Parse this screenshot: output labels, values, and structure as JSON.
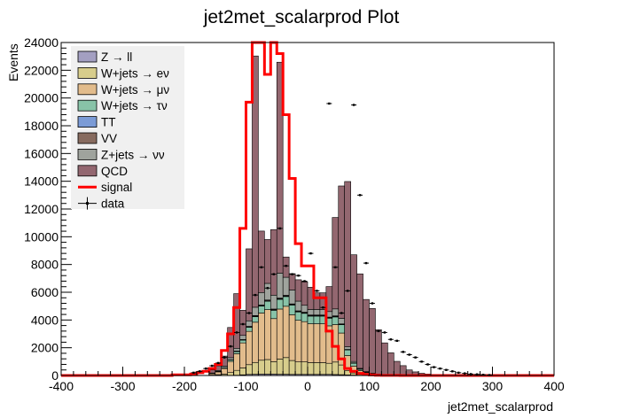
{
  "chart_data": {
    "type": "bar",
    "title": "jet2met_scalarprod Plot",
    "xlabel": "jet2met_scalarprod",
    "ylabel": "Events",
    "xlim": [
      -400,
      400
    ],
    "ylim": [
      0,
      24000
    ],
    "x_ticks": [
      -400,
      -300,
      -200,
      -100,
      0,
      100,
      200,
      300,
      400
    ],
    "y_ticks": [
      0,
      2000,
      4000,
      6000,
      8000,
      10000,
      12000,
      14000,
      16000,
      18000,
      20000,
      22000,
      24000
    ],
    "stacked": true,
    "grid": false,
    "legend_position": "top-left",
    "bin_edges": [
      -160,
      -150,
      -140,
      -130,
      -120,
      -110,
      -100,
      -90,
      -80,
      -70,
      -60,
      -50,
      -40,
      -30,
      -20,
      -10,
      0,
      10,
      20,
      30,
      40,
      50,
      60,
      70,
      80,
      90,
      100,
      110,
      120,
      130,
      140,
      150,
      160,
      170,
      180,
      190,
      200,
      210,
      220,
      230,
      240,
      250,
      260
    ],
    "series": [
      {
        "name": "Z → ll",
        "color": "#a39fc1",
        "values": [
          0,
          0,
          0,
          10,
          20,
          50,
          80,
          90,
          100,
          100,
          100,
          90,
          90,
          80,
          80,
          80,
          80,
          80,
          80,
          80,
          70,
          60,
          40,
          30,
          20,
          10,
          10,
          10,
          5,
          5,
          5,
          0,
          0,
          0,
          0,
          0,
          0,
          0,
          0,
          0,
          0,
          0
        ]
      },
      {
        "name": "W+jets → eν",
        "color": "#d7cd8c",
        "values": [
          30,
          60,
          100,
          200,
          350,
          500,
          700,
          850,
          1000,
          1050,
          900,
          1100,
          1200,
          1000,
          900,
          900,
          850,
          850,
          850,
          800,
          900,
          700,
          300,
          150,
          80,
          40,
          30,
          20,
          10,
          10,
          5,
          5,
          0,
          0,
          0,
          0,
          0,
          0,
          0,
          0,
          0,
          0
        ]
      },
      {
        "name": "W+jets → μν",
        "color": "#e2bc8c",
        "values": [
          100,
          200,
          400,
          800,
          1200,
          1800,
          2400,
          2900,
          3400,
          3600,
          3100,
          3600,
          3700,
          3300,
          3000,
          2900,
          2800,
          2800,
          2800,
          2700,
          2700,
          2300,
          1100,
          500,
          250,
          150,
          80,
          40,
          20,
          10,
          5,
          5,
          0,
          0,
          0,
          0,
          0,
          0,
          0,
          0,
          0,
          0
        ]
      },
      {
        "name": "W+jets → τν",
        "color": "#88c3a8",
        "values": [
          20,
          40,
          60,
          100,
          150,
          200,
          300,
          400,
          500,
          600,
          600,
          700,
          700,
          700,
          600,
          600,
          550,
          550,
          550,
          550,
          550,
          600,
          400,
          200,
          100,
          50,
          30,
          20,
          10,
          5,
          5,
          0,
          0,
          0,
          0,
          0,
          0,
          0,
          0,
          0,
          0,
          0
        ]
      },
      {
        "name": "TT",
        "color": "#7b9bd6",
        "values": [
          0,
          0,
          5,
          10,
          20,
          20,
          30,
          40,
          40,
          40,
          40,
          40,
          40,
          40,
          40,
          40,
          40,
          40,
          40,
          40,
          40,
          30,
          20,
          10,
          5,
          5,
          0,
          0,
          0,
          0,
          0,
          0,
          0,
          0,
          0,
          0,
          0,
          0,
          0,
          0,
          0,
          0
        ]
      },
      {
        "name": "VV",
        "color": "#876b5f",
        "values": [
          0,
          0,
          5,
          10,
          20,
          20,
          30,
          40,
          40,
          50,
          50,
          50,
          50,
          40,
          40,
          40,
          40,
          40,
          40,
          40,
          40,
          30,
          20,
          20,
          10,
          5,
          0,
          0,
          0,
          0,
          0,
          0,
          0,
          0,
          0,
          0,
          0,
          0,
          0,
          0,
          0,
          0
        ]
      },
      {
        "name": "Z+jets → νν",
        "color": "#9fa39d",
        "values": [
          30,
          60,
          100,
          150,
          200,
          300,
          400,
          600,
          900,
          1200,
          1000,
          1800,
          1300,
          1000,
          700,
          500,
          400,
          400,
          400,
          400,
          500,
          400,
          200,
          100,
          50,
          20,
          10,
          5,
          5,
          5,
          0,
          0,
          0,
          0,
          0,
          0,
          0,
          0,
          0,
          0,
          0,
          0
        ]
      },
      {
        "name": "QCD",
        "color": "#936770",
        "values": [
          220,
          340,
          730,
          2180,
          3940,
          1810,
          5190,
          18110,
          4430,
          3160,
          4720,
          15200,
          1460,
          1180,
          1540,
          1690,
          1600,
          1200,
          1200,
          1800,
          6590,
          9540,
          11900,
          7690,
          6810,
          5200,
          4670,
          3200,
          2300,
          1600,
          1000,
          700,
          400,
          260,
          160,
          100,
          60,
          30,
          20,
          10,
          10,
          5
        ]
      }
    ],
    "signal": {
      "name": "signal",
      "color": "#ff0000",
      "bin_edges": [
        -400,
        -220,
        -190,
        -180,
        -170,
        -160,
        -150,
        -140,
        -130,
        -120,
        -110,
        -100,
        -90,
        -80,
        -70,
        -60,
        -50,
        -40,
        -30,
        -20,
        -10,
        0,
        10,
        20,
        30,
        40,
        50,
        60,
        70,
        80,
        90,
        100,
        110,
        120,
        130,
        140,
        150,
        160,
        170,
        180,
        190,
        200,
        210,
        400
      ],
      "values": [
        0,
        50,
        100,
        200,
        300,
        500,
        800,
        1800,
        3000,
        4900,
        10600,
        19700,
        25000,
        25000,
        21700,
        26000,
        23200,
        18800,
        14200,
        9500,
        7900,
        7900,
        5600,
        5600,
        3200,
        2100,
        1200,
        500,
        300,
        150,
        80,
        40,
        20,
        10,
        5,
        5,
        0,
        0,
        0,
        0,
        0,
        0,
        0
      ]
    },
    "data_points": {
      "name": "data",
      "x": [
        -185,
        -175,
        -165,
        -155,
        -145,
        -135,
        -125,
        -115,
        -105,
        -95,
        -85,
        -75,
        -65,
        -55,
        -45,
        -35,
        -25,
        -15,
        -5,
        5,
        15,
        25,
        35,
        45,
        55,
        65,
        75,
        85,
        95,
        105,
        115,
        125,
        135,
        145,
        155,
        165,
        175,
        185,
        195,
        205,
        215,
        225,
        235,
        245,
        255,
        265,
        275,
        285,
        295
      ],
      "y": [
        200,
        300,
        500,
        700,
        900,
        1300,
        2100,
        3100,
        3700,
        4500,
        5800,
        7800,
        6300,
        7300,
        10600,
        7900,
        7300,
        7200,
        6800,
        8800,
        6100,
        4900,
        19600,
        7800,
        4500,
        6100,
        19500,
        13000,
        8100,
        5200,
        3200,
        3100,
        2600,
        2500,
        1700,
        1500,
        1300,
        1000,
        800,
        600,
        500,
        400,
        300,
        200,
        150,
        100,
        80,
        50,
        30
      ]
    }
  }
}
